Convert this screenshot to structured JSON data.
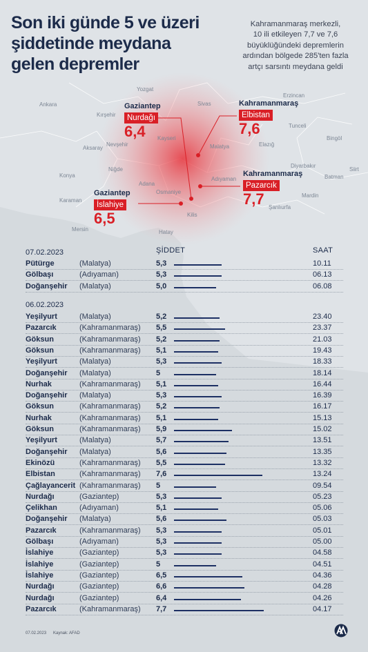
{
  "header": {
    "title_lines": [
      "Son iki günde 5 ve üzeri",
      "şiddetinde meydana",
      "gelen depremler"
    ],
    "subtitle_lines": [
      "Kahramanmaraş merkezli,",
      "10 ili etkileyen 7,7 ve 7,6",
      "büyüklüğündeki depremlerin",
      "ardından bölgede 285'ten fazla",
      "artçı sarsıntı meydana geldi"
    ]
  },
  "map": {
    "cities": [
      "Yozgat",
      "Sivas",
      "Erzincan",
      "Ankara",
      "Kırşehir",
      "Nevşehir",
      "Kayseri",
      "Malatya",
      "Elazığ",
      "Aksaray",
      "Tunceli",
      "Bingöl",
      "Diyarbakır",
      "Siirt",
      "Batman",
      "Niğde",
      "Konya",
      "Adana",
      "Osmaniye",
      "Adıyaman",
      "Mardin",
      "Şanlıurfa",
      "Karaman",
      "Kilis",
      "Mersin",
      "Hatay"
    ],
    "quakes": [
      {
        "city": "Gaziantep",
        "district": "Nurdağı",
        "magnitude": "6,4"
      },
      {
        "city": "Kahramanmaraş",
        "district": "Elbistan",
        "magnitude": "7,6"
      },
      {
        "city": "Kahramanmaraş",
        "district": "Pazarcık",
        "magnitude": "7,7"
      },
      {
        "city": "Gaziantep",
        "district": "İslahiye",
        "magnitude": "6,5"
      }
    ],
    "colors": {
      "accent": "#d91f26",
      "bar": "#1c2f63",
      "text": "#1c2b4a"
    }
  },
  "table": {
    "header_magnitude": "ŞİDDET",
    "header_time": "SAAT",
    "sections": [
      {
        "date": "07.02.2023"
      },
      {
        "date": "06.02.2023"
      }
    ]
  },
  "chart_data": {
    "type": "bar",
    "orientation": "horizontal",
    "series": [
      {
        "date": "07.02.2023",
        "rows": [
          {
            "district": "Pütürge",
            "province": "(Malatya)",
            "magnitude": 5.3,
            "magnitude_label": "5,3",
            "time": "10.11"
          },
          {
            "district": "Gölbaşı",
            "province": "(Adıyaman)",
            "magnitude": 5.3,
            "magnitude_label": "5,3",
            "time": "06.13"
          },
          {
            "district": "Doğanşehir",
            "province": "(Malatya)",
            "magnitude": 5.0,
            "magnitude_label": "5,0",
            "time": "06.08"
          }
        ]
      },
      {
        "date": "06.02.2023",
        "rows": [
          {
            "district": "Yeşilyurt",
            "province": "(Malatya)",
            "magnitude": 5.2,
            "magnitude_label": "5,2",
            "time": "23.40"
          },
          {
            "district": "Pazarcık",
            "province": "(Kahramanmaraş)",
            "magnitude": 5.5,
            "magnitude_label": "5,5",
            "time": "23.37"
          },
          {
            "district": "Göksun",
            "province": "(Kahramanmaraş)",
            "magnitude": 5.2,
            "magnitude_label": "5,2",
            "time": "21.03"
          },
          {
            "district": "Göksun",
            "province": "(Kahramanmaraş)",
            "magnitude": 5.1,
            "magnitude_label": "5,1",
            "time": "19.43"
          },
          {
            "district": "Yeşilyurt",
            "province": "(Malatya)",
            "magnitude": 5.3,
            "magnitude_label": "5,3",
            "time": "18.33"
          },
          {
            "district": "Doğanşehir",
            "province": "(Malatya)",
            "magnitude": 5.0,
            "magnitude_label": "5",
            "time": "18.14"
          },
          {
            "district": "Nurhak",
            "province": "(Kahramanmaraş)",
            "magnitude": 5.1,
            "magnitude_label": "5,1",
            "time": "16.44"
          },
          {
            "district": "Doğanşehir",
            "province": "(Malatya)",
            "magnitude": 5.3,
            "magnitude_label": "5,3",
            "time": "16.39"
          },
          {
            "district": "Göksun",
            "province": "(Kahramanmaraş)",
            "magnitude": 5.2,
            "magnitude_label": "5,2",
            "time": "16.17"
          },
          {
            "district": "Nurhak",
            "province": "(Kahramanmaraş)",
            "magnitude": 5.1,
            "magnitude_label": "5,1",
            "time": "15.13"
          },
          {
            "district": "Göksun",
            "province": "(Kahramanmaraş)",
            "magnitude": 5.9,
            "magnitude_label": "5,9",
            "time": "15.02"
          },
          {
            "district": "Yeşilyurt",
            "province": "(Malatya)",
            "magnitude": 5.7,
            "magnitude_label": "5,7",
            "time": "13.51"
          },
          {
            "district": "Doğanşehir",
            "province": "(Malatya)",
            "magnitude": 5.6,
            "magnitude_label": "5,6",
            "time": "13.35"
          },
          {
            "district": "Ekinözü",
            "province": "(Kahramanmaraş)",
            "magnitude": 5.5,
            "magnitude_label": "5,5",
            "time": "13.32"
          },
          {
            "district": "Elbistan",
            "province": "(Kahramanmaraş)",
            "magnitude": 7.6,
            "magnitude_label": "7,6",
            "time": "13.24"
          },
          {
            "district": "Çağlayancerit",
            "province": "(Kahramanmaraş)",
            "magnitude": 5.0,
            "magnitude_label": "5",
            "time": "09.54"
          },
          {
            "district": "Nurdağı",
            "province": "(Gaziantep)",
            "magnitude": 5.3,
            "magnitude_label": "5,3",
            "time": "05.23"
          },
          {
            "district": "Çelikhan",
            "province": "(Adıyaman)",
            "magnitude": 5.1,
            "magnitude_label": "5,1",
            "time": "05.06"
          },
          {
            "district": "Doğanşehir",
            "province": "(Malatya)",
            "magnitude": 5.6,
            "magnitude_label": "5,6",
            "time": "05.03"
          },
          {
            "district": "Pazarcık",
            "province": "(Kahramanmaraş)",
            "magnitude": 5.3,
            "magnitude_label": "5,3",
            "time": "05.01"
          },
          {
            "district": "Gölbaşı",
            "province": "(Adıyaman)",
            "magnitude": 5.3,
            "magnitude_label": "5,3",
            "time": "05.00"
          },
          {
            "district": "İslahiye",
            "province": "(Gaziantep)",
            "magnitude": 5.3,
            "magnitude_label": "5,3",
            "time": "04.58"
          },
          {
            "district": "İslahiye",
            "province": "(Gaziantep)",
            "magnitude": 5.0,
            "magnitude_label": "5",
            "time": "04.51"
          },
          {
            "district": "İslahiye",
            "province": "(Gaziantep)",
            "magnitude": 6.5,
            "magnitude_label": "6,5",
            "time": "04.36"
          },
          {
            "district": "Nurdağı",
            "province": "(Gaziantep)",
            "magnitude": 6.6,
            "magnitude_label": "6,6",
            "time": "04.28"
          },
          {
            "district": "Nurdağı",
            "province": "(Gaziantep)",
            "magnitude": 6.4,
            "magnitude_label": "6,4",
            "time": "04.26"
          },
          {
            "district": "Pazarcık",
            "province": "(Kahramanmaraş)",
            "magnitude": 7.7,
            "magnitude_label": "7,7",
            "time": "04.17"
          }
        ]
      }
    ]
  },
  "footer": {
    "date": "07.02.2023",
    "source": "Kaynak: AFAD",
    "logo_text": "AA"
  }
}
